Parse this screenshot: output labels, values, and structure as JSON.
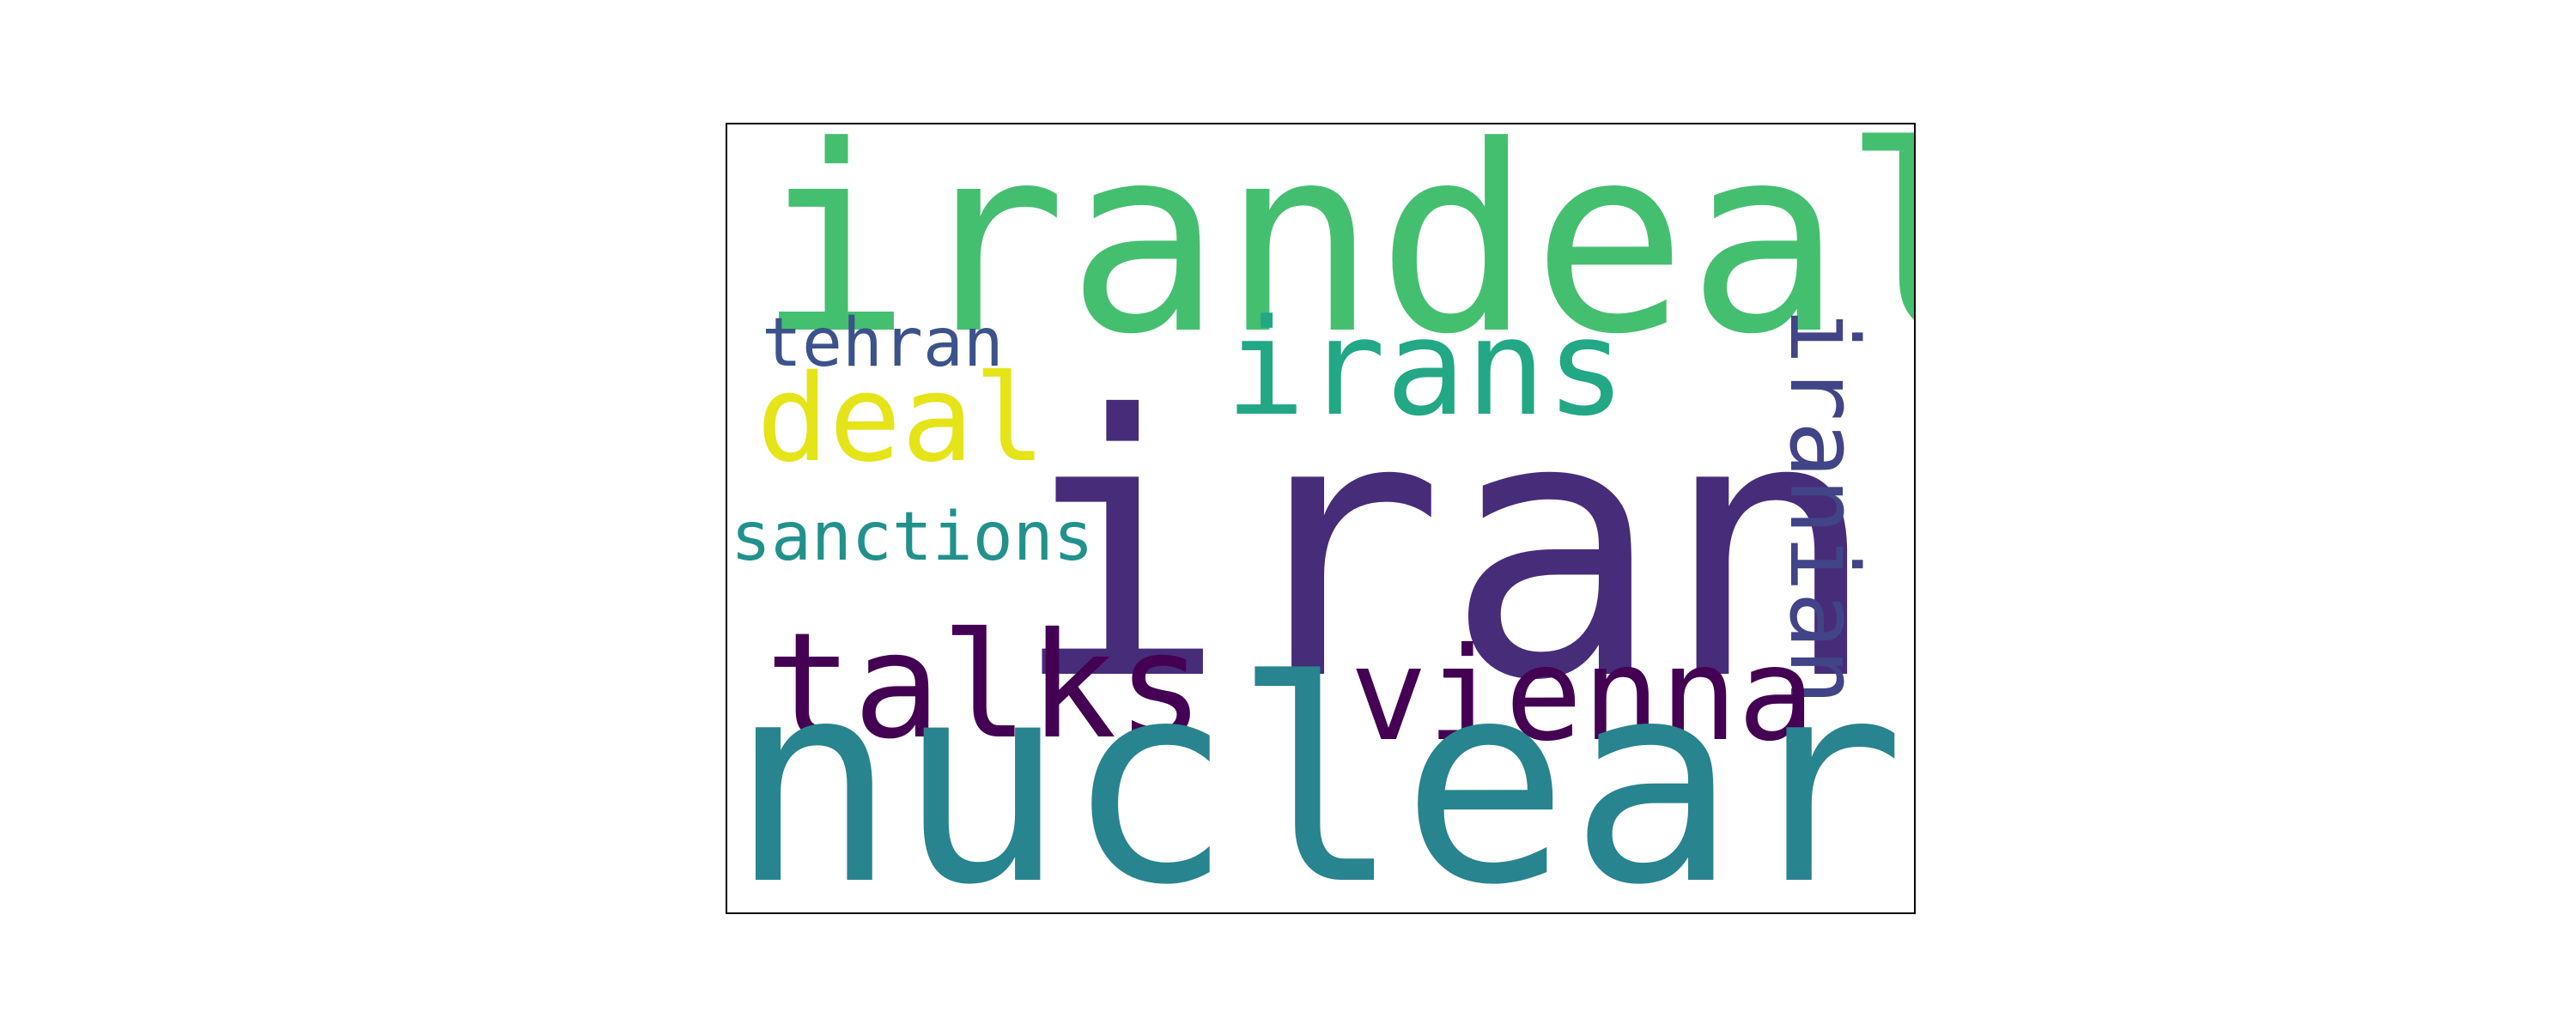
{
  "word_cloud": {
    "words": [
      {
        "text": "iran",
        "color": "#472c7a"
      },
      {
        "text": "irandeal",
        "color": "#44bf70"
      },
      {
        "text": "nuclear",
        "color": "#28848e"
      },
      {
        "text": "irans",
        "color": "#22a884"
      },
      {
        "text": "talks",
        "color": "#440154"
      },
      {
        "text": "vienna",
        "color": "#440154"
      },
      {
        "text": "iranian",
        "color": "#414487"
      },
      {
        "text": "deal",
        "color": "#e5e419"
      },
      {
        "text": "tehran",
        "color": "#3b528b"
      },
      {
        "text": "sanctions",
        "color": "#21918c"
      }
    ]
  }
}
